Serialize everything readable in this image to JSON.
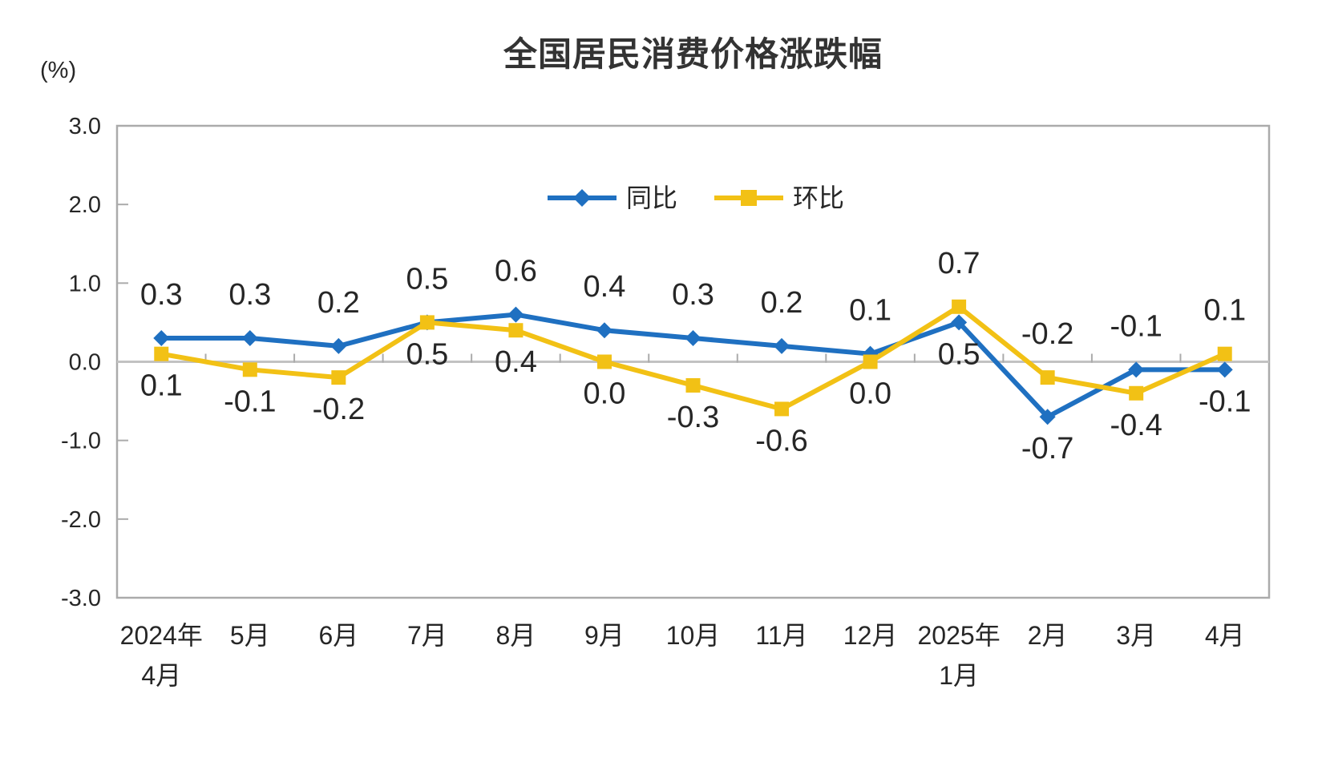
{
  "chart_data": {
    "type": "line",
    "title": "全国居民消费价格涨跌幅",
    "unit_label": "(%)",
    "categories": [
      "2024年4月",
      "5月",
      "6月",
      "7月",
      "8月",
      "9月",
      "10月",
      "11月",
      "12月",
      "2025年1月",
      "2月",
      "3月",
      "4月"
    ],
    "category_label_lines": [
      [
        "2024年",
        "4月"
      ],
      [
        "5月"
      ],
      [
        "6月"
      ],
      [
        "7月"
      ],
      [
        "8月"
      ],
      [
        "9月"
      ],
      [
        "10月"
      ],
      [
        "11月"
      ],
      [
        "12月"
      ],
      [
        "2025年",
        "1月"
      ],
      [
        "2月"
      ],
      [
        "3月"
      ],
      [
        "4月"
      ]
    ],
    "series": [
      {
        "name": "同比",
        "color": "#1F70C1",
        "marker": "diamond",
        "values": [
          0.3,
          0.3,
          0.2,
          0.5,
          0.6,
          0.4,
          0.3,
          0.2,
          0.1,
          0.5,
          -0.7,
          -0.1,
          -0.1
        ],
        "label_side": [
          "above",
          "above",
          "above",
          "above",
          "above",
          "above",
          "above",
          "above",
          "above",
          "below",
          "below",
          "above",
          "below"
        ]
      },
      {
        "name": "环比",
        "color": "#F2C115",
        "marker": "square",
        "values": [
          0.1,
          -0.1,
          -0.2,
          0.5,
          0.4,
          0.0,
          -0.3,
          -0.6,
          0.0,
          0.7,
          -0.2,
          -0.4,
          0.1
        ],
        "label_side": [
          "below",
          "below",
          "below",
          "below",
          "below",
          "below",
          "below",
          "below",
          "below",
          "above",
          "above",
          "below",
          "above"
        ]
      }
    ],
    "ylim": [
      -3.0,
      3.0
    ],
    "ytick_step": 1.0,
    "ytick_labels": [
      "3.0",
      "2.0",
      "1.0",
      "0.0",
      "-1.0",
      "-2.0",
      "-3.0"
    ],
    "legend_position": "top-center-inside",
    "grid": {
      "horizontal_gridlines": false,
      "zero_line": true,
      "plot_border": true
    },
    "colors": {
      "axis_line": "#ABABAB",
      "zero_line": "#C2C2C2",
      "tick": "#ABABAB",
      "label_text": "#262626",
      "title_text": "#333333"
    }
  }
}
